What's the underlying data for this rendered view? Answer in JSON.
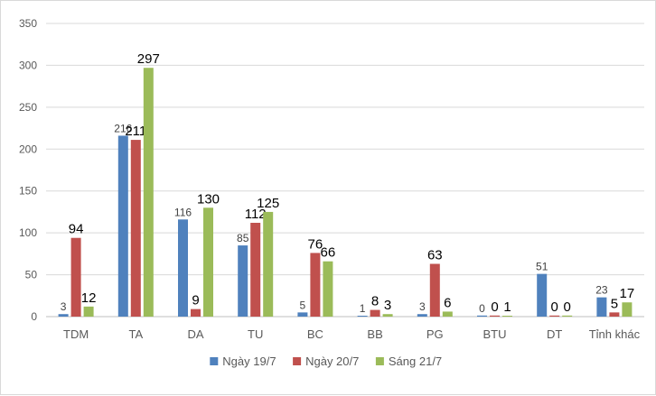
{
  "chart_data": {
    "type": "bar",
    "categories": [
      "TDM",
      "TA",
      "DA",
      "TU",
      "BC",
      "BB",
      "PG",
      "BTU",
      "DT",
      "Tỉnh khác"
    ],
    "series": [
      {
        "name": "Ngày 19/7",
        "color": "#4f81bd",
        "values": [
          3,
          216,
          116,
          85,
          5,
          1,
          3,
          0,
          51,
          23
        ]
      },
      {
        "name": "Ngày 20/7",
        "color": "#c0504d",
        "values": [
          94,
          211,
          9,
          112,
          76,
          8,
          63,
          0,
          0,
          5
        ]
      },
      {
        "name": "Sáng 21/7",
        "color": "#9bbb59",
        "values": [
          12,
          297,
          130,
          125,
          66,
          3,
          6,
          1,
          0,
          17
        ]
      }
    ],
    "yticks": [
      0,
      50,
      100,
      150,
      200,
      250,
      300,
      350
    ],
    "ylim": [
      0,
      350
    ],
    "grid": true,
    "legend": "bottom",
    "title": "",
    "xlabel": "",
    "ylabel": ""
  }
}
